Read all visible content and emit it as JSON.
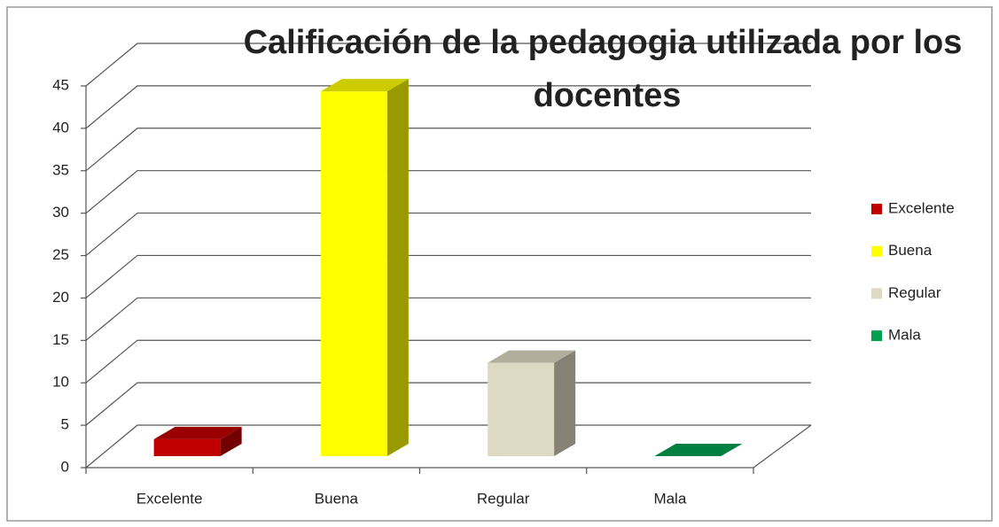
{
  "chart_data": {
    "type": "bar3d",
    "title": [
      "Calificación de la pedagogia utilizada por los",
      "docentes"
    ],
    "categories": [
      "Excelente",
      "Buena",
      "Regular",
      "Mala"
    ],
    "values": [
      2,
      43,
      11,
      0
    ],
    "colors": [
      "#c00000",
      "#ffff00",
      "#ddd9c3",
      "#00a050"
    ],
    "ylim": [
      0,
      45
    ],
    "yticks": [
      0,
      5,
      10,
      15,
      20,
      25,
      30,
      35,
      40,
      45
    ],
    "grid": true,
    "legend": "right"
  }
}
